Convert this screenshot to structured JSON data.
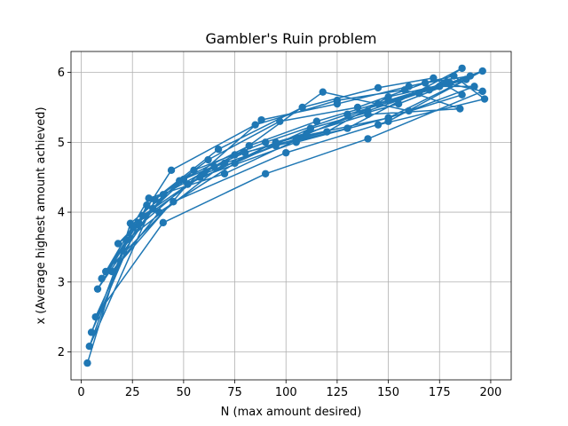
{
  "chart_data": {
    "type": "line",
    "title": "Gambler's Ruin problem",
    "xlabel": "N (max amount desired)",
    "ylabel": "x (Average highest amount achieved)",
    "xlim": [
      -5,
      210
    ],
    "ylim": [
      1.6,
      6.3
    ],
    "xticks": [
      0,
      25,
      50,
      75,
      100,
      125,
      150,
      175,
      200
    ],
    "yticks": [
      2,
      3,
      4,
      5,
      6
    ],
    "grid": true,
    "legend": "none",
    "color": "#1f77b4",
    "series": [
      {
        "marker": "circle",
        "x": [
          3,
          24,
          50,
          80,
          110,
          140,
          170,
          186,
          130,
          95,
          60,
          30,
          8,
          40,
          75,
          120,
          150,
          180,
          196,
          150,
          100,
          45,
          12,
          35,
          65,
          105,
          145,
          175,
          192,
          160,
          118,
          70,
          22,
          5,
          28,
          55,
          90,
          130,
          165,
          188,
          150,
          110,
          70,
          33,
          10,
          44,
          85,
          125,
          158,
          185,
          140,
          95,
          52,
          18,
          48,
          82,
          115,
          150,
          178,
          196,
          140,
          90,
          40,
          7,
          32,
          67,
          108,
          145,
          172,
          186,
          150,
          105,
          58,
          25,
          4,
          36,
          62,
          97,
          135,
          168,
          190,
          155,
          112,
          75,
          38,
          15,
          52,
          88,
          125,
          160,
          182,
          197,
          145
        ],
        "y": [
          1.84,
          3.84,
          4.47,
          4.85,
          5.12,
          5.45,
          5.75,
          6.06,
          5.2,
          4.95,
          4.55,
          3.95,
          2.9,
          4.25,
          4.82,
          5.15,
          5.65,
          5.85,
          6.02,
          5.3,
          4.85,
          4.15,
          3.15,
          4.05,
          4.65,
          5.05,
          5.55,
          5.8,
          5.8,
          5.45,
          5.72,
          4.7,
          3.6,
          2.28,
          3.85,
          4.6,
          5.0,
          5.4,
          5.7,
          5.9,
          5.35,
          5.1,
          4.55,
          4.2,
          3.05,
          4.6,
          5.25,
          5.6,
          5.75,
          5.48,
          5.4,
          5.0,
          4.4,
          3.55,
          4.45,
          4.95,
          5.3,
          5.6,
          5.85,
          5.73,
          5.05,
          4.55,
          3.85,
          2.5,
          4.1,
          4.9,
          5.5,
          5.78,
          5.92,
          5.68,
          5.35,
          5.0,
          4.5,
          3.8,
          2.08,
          4.18,
          4.75,
          5.3,
          5.5,
          5.85,
          5.95,
          5.55,
          5.2,
          4.7,
          4.0,
          3.15,
          4.4,
          5.32,
          5.55,
          5.8,
          5.95,
          5.62,
          5.25
        ]
      }
    ]
  }
}
